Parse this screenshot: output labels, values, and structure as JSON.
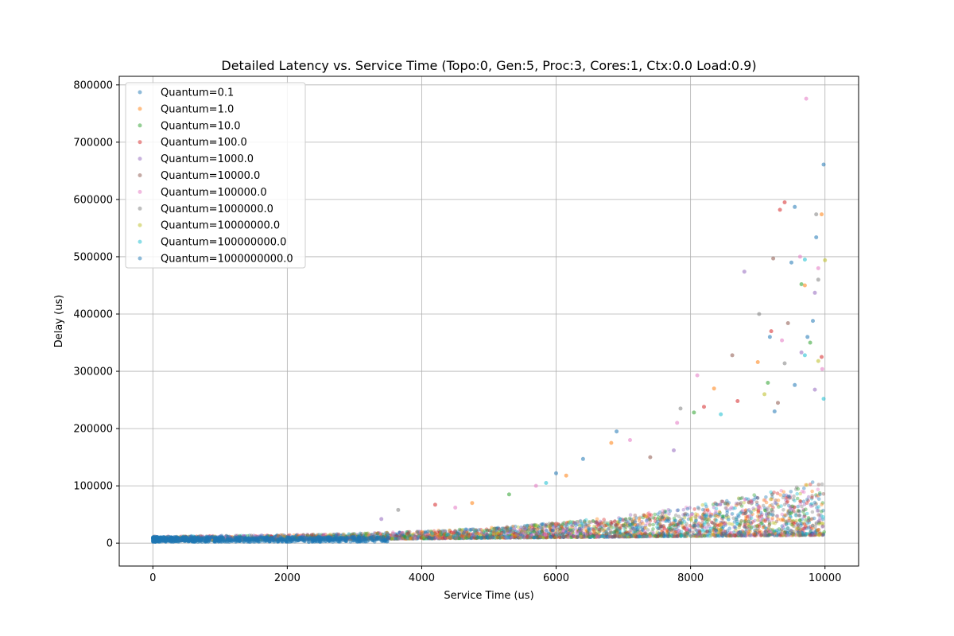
{
  "chart_data": {
    "type": "scatter",
    "title": "Detailed Latency vs. Service Time (Topo:0, Gen:5, Proc:3, Cores:1, Ctx:0.0 Load:0.9)",
    "xlabel": "Service Time (us)",
    "ylabel": "Delay (us)",
    "xlim": [
      -500,
      10500
    ],
    "ylim": [
      -40000,
      815000
    ],
    "xticks": [
      0,
      2000,
      4000,
      6000,
      8000,
      10000
    ],
    "yticks": [
      0,
      100000,
      200000,
      300000,
      400000,
      500000,
      600000,
      700000,
      800000
    ],
    "grid": true,
    "legend_position": "top-left",
    "series": [
      {
        "name": "Quantum=0.1",
        "color": "#1f77b4"
      },
      {
        "name": "Quantum=1.0",
        "color": "#ff7f0e"
      },
      {
        "name": "Quantum=10.0",
        "color": "#2ca02c"
      },
      {
        "name": "Quantum=100.0",
        "color": "#d62728"
      },
      {
        "name": "Quantum=1000.0",
        "color": "#9467bd"
      },
      {
        "name": "Quantum=10000.0",
        "color": "#8c564b"
      },
      {
        "name": "Quantum=100000.0",
        "color": "#e377c2"
      },
      {
        "name": "Quantum=1000000.0",
        "color": "#7f7f7f"
      },
      {
        "name": "Quantum=10000000.0",
        "color": "#bcbd22"
      },
      {
        "name": "Quantum=100000000.0",
        "color": "#17becf"
      },
      {
        "name": "Quantum=1000000000.0",
        "color": "#1f77b4"
      }
    ],
    "highlight_points": [
      {
        "x": 9720,
        "y": 776000,
        "series": 6
      },
      {
        "x": 9980,
        "y": 661000,
        "series": 10
      },
      {
        "x": 9400,
        "y": 595000,
        "series": 3
      },
      {
        "x": 9550,
        "y": 587000,
        "series": 0
      },
      {
        "x": 9330,
        "y": 582000,
        "series": 3
      },
      {
        "x": 9870,
        "y": 574000,
        "series": 7
      },
      {
        "x": 9950,
        "y": 574000,
        "series": 1
      },
      {
        "x": 9870,
        "y": 534000,
        "series": 0
      },
      {
        "x": 9630,
        "y": 500000,
        "series": 6
      },
      {
        "x": 9230,
        "y": 497000,
        "series": 5
      },
      {
        "x": 10000,
        "y": 494000,
        "series": 8
      },
      {
        "x": 9500,
        "y": 490000,
        "series": 10
      },
      {
        "x": 9700,
        "y": 495000,
        "series": 9
      },
      {
        "x": 8800,
        "y": 474000,
        "series": 4
      },
      {
        "x": 9900,
        "y": 480000,
        "series": 6
      },
      {
        "x": 9900,
        "y": 460000,
        "series": 7
      },
      {
        "x": 9650,
        "y": 452000,
        "series": 2
      },
      {
        "x": 9700,
        "y": 450000,
        "series": 1
      },
      {
        "x": 9850,
        "y": 437000,
        "series": 4
      },
      {
        "x": 9020,
        "y": 400000,
        "series": 7
      },
      {
        "x": 9820,
        "y": 388000,
        "series": 0
      },
      {
        "x": 9450,
        "y": 384000,
        "series": 5
      },
      {
        "x": 9200,
        "y": 370000,
        "series": 3
      },
      {
        "x": 9180,
        "y": 360000,
        "series": 0
      },
      {
        "x": 9740,
        "y": 360000,
        "series": 10
      },
      {
        "x": 9360,
        "y": 354000,
        "series": 6
      },
      {
        "x": 9780,
        "y": 350000,
        "series": 2
      },
      {
        "x": 9650,
        "y": 333000,
        "series": 4
      },
      {
        "x": 9700,
        "y": 328000,
        "series": 9
      },
      {
        "x": 9950,
        "y": 325000,
        "series": 3
      },
      {
        "x": 8620,
        "y": 328000,
        "series": 5
      },
      {
        "x": 9000,
        "y": 316000,
        "series": 1
      },
      {
        "x": 9900,
        "y": 318000,
        "series": 8
      },
      {
        "x": 9400,
        "y": 314000,
        "series": 7
      },
      {
        "x": 9960,
        "y": 304000,
        "series": 6
      },
      {
        "x": 8100,
        "y": 293000,
        "series": 6
      },
      {
        "x": 9150,
        "y": 280000,
        "series": 2
      },
      {
        "x": 9550,
        "y": 276000,
        "series": 0
      },
      {
        "x": 8350,
        "y": 270000,
        "series": 1
      },
      {
        "x": 9850,
        "y": 268000,
        "series": 4
      },
      {
        "x": 9100,
        "y": 260000,
        "series": 8
      },
      {
        "x": 9980,
        "y": 252000,
        "series": 9
      },
      {
        "x": 8700,
        "y": 248000,
        "series": 3
      },
      {
        "x": 9300,
        "y": 245000,
        "series": 5
      },
      {
        "x": 7850,
        "y": 235000,
        "series": 7
      },
      {
        "x": 8200,
        "y": 238000,
        "series": 3
      },
      {
        "x": 9250,
        "y": 230000,
        "series": 10
      },
      {
        "x": 8450,
        "y": 225000,
        "series": 9
      },
      {
        "x": 7800,
        "y": 210000,
        "series": 6
      },
      {
        "x": 8050,
        "y": 228000,
        "series": 2
      },
      {
        "x": 6900,
        "y": 195000,
        "series": 0
      },
      {
        "x": 7100,
        "y": 180000,
        "series": 6
      },
      {
        "x": 6820,
        "y": 175000,
        "series": 1
      },
      {
        "x": 7750,
        "y": 162000,
        "series": 4
      },
      {
        "x": 6400,
        "y": 147000,
        "series": 10
      },
      {
        "x": 7400,
        "y": 150000,
        "series": 5
      },
      {
        "x": 6000,
        "y": 122000,
        "series": 0
      },
      {
        "x": 6150,
        "y": 118000,
        "series": 1
      },
      {
        "x": 5850,
        "y": 105000,
        "series": 9
      },
      {
        "x": 5700,
        "y": 100000,
        "series": 6
      },
      {
        "x": 5300,
        "y": 85000,
        "series": 2
      },
      {
        "x": 4200,
        "y": 67000,
        "series": 3
      },
      {
        "x": 3650,
        "y": 58000,
        "series": 7
      },
      {
        "x": 4500,
        "y": 62000,
        "series": 6
      },
      {
        "x": 4750,
        "y": 70000,
        "series": 1
      },
      {
        "x": 3400,
        "y": 42000,
        "series": 4
      }
    ],
    "note_distribution": "Dense cloud near zero delay for service times 0–2000 us, widening upward to ~100000–300000 us near service time 10000 us"
  }
}
